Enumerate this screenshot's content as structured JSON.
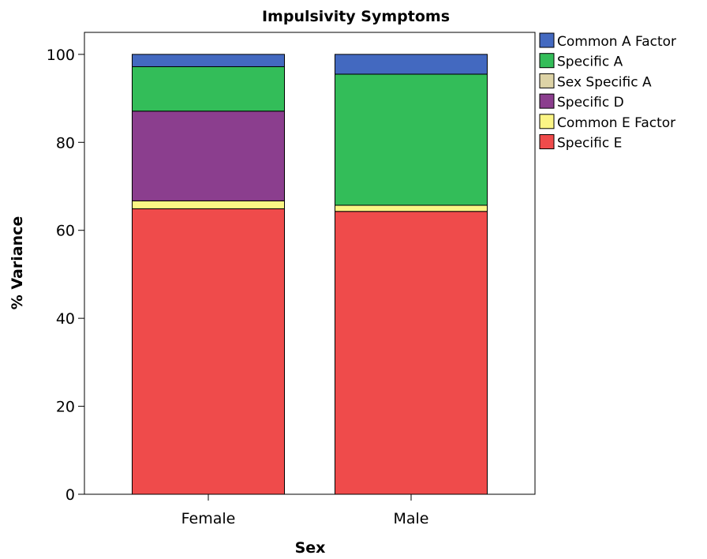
{
  "chart_data": {
    "type": "bar",
    "stacked": true,
    "title": "Impulsivity Symptoms",
    "xlabel": "Sex",
    "ylabel": "% Variance",
    "ylim": [
      0,
      105
    ],
    "yticks": [
      "0",
      "20",
      "40",
      "60",
      "80",
      "100"
    ],
    "categories": [
      "Female",
      "Male"
    ],
    "legend_position": "right",
    "series": [
      {
        "name": "Specific E",
        "color": "#ef4b4b",
        "values": [
          64.9,
          64.3
        ]
      },
      {
        "name": "Common E Factor",
        "color": "#fbf585",
        "values": [
          1.8,
          1.4
        ]
      },
      {
        "name": "Specific D",
        "color": "#8b3e8e",
        "values": [
          20.4,
          0.0
        ]
      },
      {
        "name": "Sex Specific A",
        "color": "#ddd3a6",
        "values": [
          0.0,
          0.0
        ]
      },
      {
        "name": "Specific A",
        "color": "#33bd59",
        "values": [
          10.1,
          29.8
        ]
      },
      {
        "name": "Common A Factor",
        "color": "#4369c0",
        "values": [
          2.8,
          4.5
        ]
      }
    ],
    "legend_order": [
      "Common A Factor",
      "Specific A",
      "Sex Specific A",
      "Specific D",
      "Common E Factor",
      "Specific E"
    ],
    "grid": false
  }
}
